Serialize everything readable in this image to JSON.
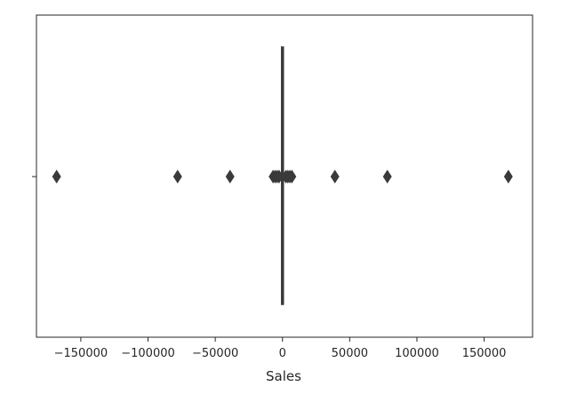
{
  "chart_data": {
    "type": "boxplot",
    "orientation": "horizontal",
    "title": "",
    "xlabel": "Sales",
    "ylabel": "",
    "xlim": [
      -183000,
      186000
    ],
    "xticks": [
      -150000,
      -100000,
      -50000,
      0,
      50000,
      100000,
      150000
    ],
    "xtick_labels": [
      "−150000",
      "−100000",
      "−50000",
      "0",
      "50000",
      "100000",
      "150000"
    ],
    "grid": false,
    "legend": "none",
    "box": {
      "q1": -50,
      "median": 0,
      "q3": 50,
      "whisker_low": -400,
      "whisker_high": 400
    },
    "outliers": [
      -168000,
      -78000,
      -39000,
      -7000,
      -5500,
      -4000,
      -2500,
      2500,
      4000,
      5500,
      7000,
      39000,
      78000,
      168000
    ],
    "colors": {
      "box": "#3a3a3a",
      "outlier": "#3a3a3a",
      "axis": "#262626"
    }
  }
}
